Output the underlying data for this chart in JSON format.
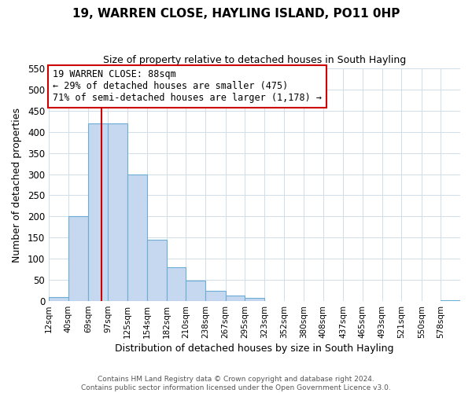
{
  "title": "19, WARREN CLOSE, HAYLING ISLAND, PO11 0HP",
  "subtitle": "Size of property relative to detached houses in South Hayling",
  "xlabel": "Distribution of detached houses by size in South Hayling",
  "ylabel": "Number of detached properties",
  "bin_labels": [
    "12sqm",
    "40sqm",
    "69sqm",
    "97sqm",
    "125sqm",
    "154sqm",
    "182sqm",
    "210sqm",
    "238sqm",
    "267sqm",
    "295sqm",
    "323sqm",
    "352sqm",
    "380sqm",
    "408sqm",
    "437sqm",
    "465sqm",
    "493sqm",
    "521sqm",
    "550sqm",
    "578sqm"
  ],
  "bar_values": [
    10,
    200,
    420,
    420,
    300,
    145,
    80,
    48,
    25,
    14,
    8,
    0,
    0,
    0,
    0,
    0,
    0,
    0,
    0,
    0,
    2
  ],
  "bar_color": "#c5d8ef",
  "bar_edge_color": "#6aaed6",
  "property_line_color": "#cc0000",
  "annotation_title": "19 WARREN CLOSE: 88sqm",
  "annotation_line1": "← 29% of detached houses are smaller (475)",
  "annotation_line2": "71% of semi-detached houses are larger (1,178) →",
  "annotation_box_color": "#ffffff",
  "annotation_box_edge": "#cc0000",
  "ylim": [
    0,
    550
  ],
  "yticks": [
    0,
    50,
    100,
    150,
    200,
    250,
    300,
    350,
    400,
    450,
    500,
    550
  ],
  "footer1": "Contains HM Land Registry data © Crown copyright and database right 2024.",
  "footer2": "Contains public sector information licensed under the Open Government Licence v3.0.",
  "grid_color": "#d0dde8"
}
